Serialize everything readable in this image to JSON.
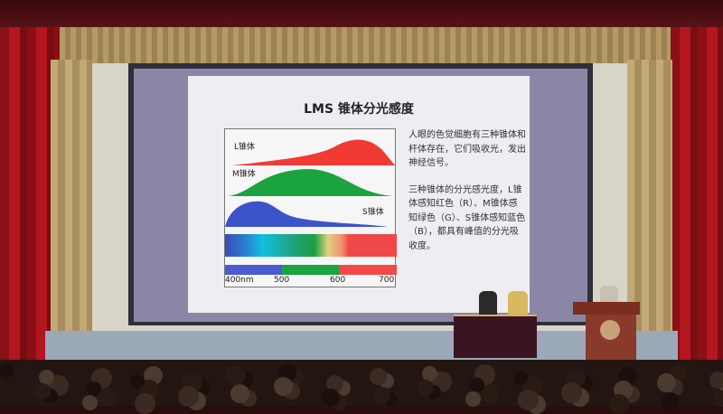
{
  "slide": {
    "title": "LMS 锥体分光感度",
    "chart": {
      "labels": {
        "l": "L锥体",
        "m": "M锥体",
        "s": "S锥体"
      },
      "axis_ticks": [
        "400nm",
        "500",
        "600",
        "700"
      ],
      "colors": {
        "l": "#f23a35",
        "m": "#1aa33e",
        "s": "#3b55c9"
      }
    },
    "description": [
      "人眼的色觉细胞有三种锥体和杆体存在，它们吸收光，发出神经信号。",
      "三种锥体的分光感光度，L锥体感知红色（R）、M锥体感知绿色（G）、S锥体感知蓝色（B），都具有峰值的分光吸收度。"
    ]
  }
}
